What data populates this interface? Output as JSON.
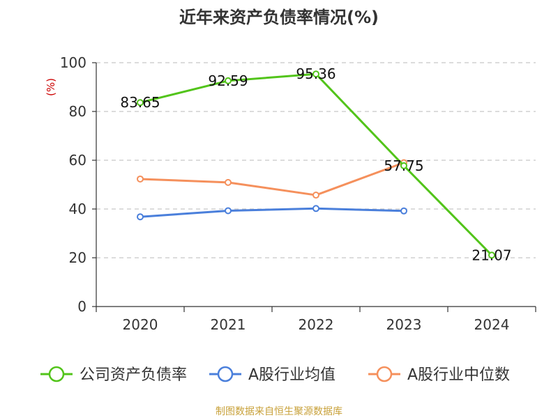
{
  "chart_data": {
    "type": "line",
    "title": "近年来资产负债率情况(%)",
    "ylabel": "(%)",
    "xlabel": "",
    "ylim": [
      0,
      100
    ],
    "yticks": [
      0,
      20,
      40,
      60,
      80,
      100
    ],
    "categories": [
      "2020",
      "2021",
      "2022",
      "2023",
      "2024"
    ],
    "grid": true,
    "legend_position": "bottom",
    "series": [
      {
        "name": "公司资产负债率",
        "color": "#52c41a",
        "values": [
          83.65,
          92.59,
          95.36,
          57.75,
          21.07
        ],
        "labels": [
          "83.65",
          "92.59",
          "95.36",
          "57.75",
          "21.07"
        ]
      },
      {
        "name": "A股行业均值",
        "color": "#4a7fdb",
        "values": [
          36.8,
          39.3,
          40.2,
          39.2,
          null
        ]
      },
      {
        "name": "A股行业中位数",
        "color": "#f5905c",
        "values": [
          52.3,
          50.9,
          45.7,
          59.0,
          null
        ]
      }
    ]
  },
  "footer": {
    "source": "制图数据来自恒生聚源数据库"
  }
}
